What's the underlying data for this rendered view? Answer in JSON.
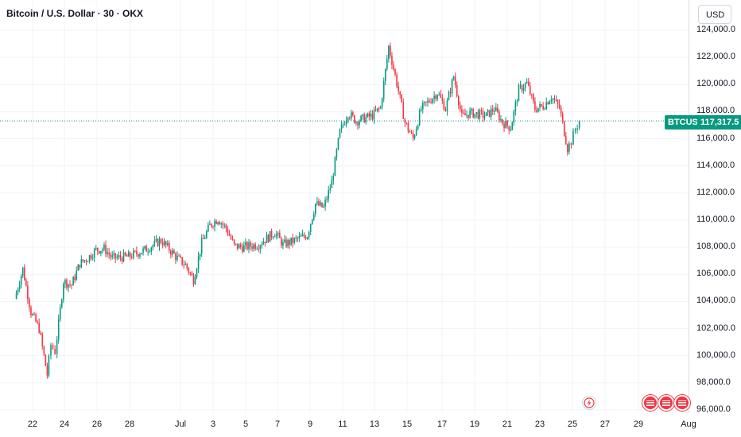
{
  "header": {
    "title": "Bitcoin / U.S. Dollar · 30 · OKX",
    "currency_button": "USD"
  },
  "last_price": {
    "symbol": "BTCUSD",
    "value": "117,317.5",
    "numeric": 117317.5,
    "color": "#089981"
  },
  "colors": {
    "up": "#089981",
    "down": "#f23645",
    "grid": "#f0f3fa",
    "price_line": "#089981"
  },
  "events": {
    "flash_icon": "flash-icon",
    "flag_icons": [
      "us-flag-icon",
      "us-flag-icon",
      "us-flag-icon"
    ]
  },
  "chart_data": {
    "type": "candlestick",
    "title": "Bitcoin / U.S. Dollar · 30 · OKX",
    "y_unit": "USD",
    "ylim": [
      96000,
      124000
    ],
    "y_ticks": [
      "124,000.0",
      "122,000.0",
      "120,000.0",
      "118,000.0",
      "116,000.0",
      "114,000.0",
      "112,000.0",
      "110,000.0",
      "108,000.0",
      "106,000.0",
      "104,000.0",
      "102,000.0",
      "100,000.0",
      "98,000.0",
      "96,000.0"
    ],
    "x_ticks": [
      "22",
      "24",
      "26",
      "28",
      "Jul",
      "3",
      "5",
      "7",
      "9",
      "11",
      "13",
      "15",
      "17",
      "19",
      "21",
      "23",
      "25",
      "27",
      "29",
      "Aug"
    ],
    "grid": true,
    "series_close": [
      {
        "x": "Jun 21",
        "y": 104200
      },
      {
        "x": "Jun 21 12:00",
        "y": 106400
      },
      {
        "x": "Jun 22",
        "y": 103200
      },
      {
        "x": "Jun 22 12:00",
        "y": 102000
      },
      {
        "x": "Jun 23",
        "y": 98600
      },
      {
        "x": "Jun 23 06:00",
        "y": 100800
      },
      {
        "x": "Jun 23 12:00",
        "y": 100300
      },
      {
        "x": "Jun 24",
        "y": 105500
      },
      {
        "x": "Jun 24 12:00",
        "y": 105200
      },
      {
        "x": "Jun 25",
        "y": 106800
      },
      {
        "x": "Jun 25 12:00",
        "y": 107200
      },
      {
        "x": "Jun 26",
        "y": 107800
      },
      {
        "x": "Jun 26 12:00",
        "y": 107900
      },
      {
        "x": "Jun 27",
        "y": 107200
      },
      {
        "x": "Jun 28",
        "y": 107300
      },
      {
        "x": "Jun 29",
        "y": 107800
      },
      {
        "x": "Jun 30",
        "y": 108500
      },
      {
        "x": "Jul 1",
        "y": 107200
      },
      {
        "x": "Jul 1 12:00",
        "y": 106700
      },
      {
        "x": "Jul 2",
        "y": 105600
      },
      {
        "x": "Jul 2 12:00",
        "y": 108300
      },
      {
        "x": "Jul 3",
        "y": 109600
      },
      {
        "x": "Jul 3 12:00",
        "y": 110100
      },
      {
        "x": "Jul 4",
        "y": 109400
      },
      {
        "x": "Jul 4 12:00",
        "y": 108100
      },
      {
        "x": "Jul 5",
        "y": 108000
      },
      {
        "x": "Jul 6",
        "y": 108200
      },
      {
        "x": "Jul 7",
        "y": 109100
      },
      {
        "x": "Jul 7 12:00",
        "y": 108200
      },
      {
        "x": "Jul 8",
        "y": 108400
      },
      {
        "x": "Jul 9",
        "y": 108900
      },
      {
        "x": "Jul 9 12:00",
        "y": 111200
      },
      {
        "x": "Jul 10",
        "y": 110900
      },
      {
        "x": "Jul 10 12:00",
        "y": 112800
      },
      {
        "x": "Jul 11",
        "y": 116500
      },
      {
        "x": "Jul 11 12:00",
        "y": 117900
      },
      {
        "x": "Jul 12",
        "y": 117300
      },
      {
        "x": "Jul 13",
        "y": 117700
      },
      {
        "x": "Jul 13 12:00",
        "y": 118300
      },
      {
        "x": "Jul 14",
        "y": 122800
      },
      {
        "x": "Jul 14 12:00",
        "y": 120100
      },
      {
        "x": "Jul 15",
        "y": 117200
      },
      {
        "x": "Jul 15 12:00",
        "y": 116000
      },
      {
        "x": "Jul 16",
        "y": 118200
      },
      {
        "x": "Jul 17",
        "y": 119400
      },
      {
        "x": "Jul 17 12:00",
        "y": 118200
      },
      {
        "x": "Jul 18",
        "y": 120600
      },
      {
        "x": "Jul 18 12:00",
        "y": 117600
      },
      {
        "x": "Jul 19",
        "y": 117900
      },
      {
        "x": "Jul 20",
        "y": 117700
      },
      {
        "x": "Jul 20 12:00",
        "y": 118200
      },
      {
        "x": "Jul 21",
        "y": 117200
      },
      {
        "x": "Jul 21 12:00",
        "y": 116800
      },
      {
        "x": "Jul 22",
        "y": 119600
      },
      {
        "x": "Jul 22 12:00",
        "y": 120100
      },
      {
        "x": "Jul 23",
        "y": 118200
      },
      {
        "x": "Jul 23 12:00",
        "y": 118400
      },
      {
        "x": "Jul 24",
        "y": 119100
      },
      {
        "x": "Jul 24 12:00",
        "y": 118300
      },
      {
        "x": "Jul 25",
        "y": 115300
      },
      {
        "x": "Jul 25 06:00",
        "y": 115800
      },
      {
        "x": "Jul 25 12:00",
        "y": 116700
      },
      {
        "x": "Jul 25 18:00",
        "y": 117317.5
      }
    ]
  }
}
